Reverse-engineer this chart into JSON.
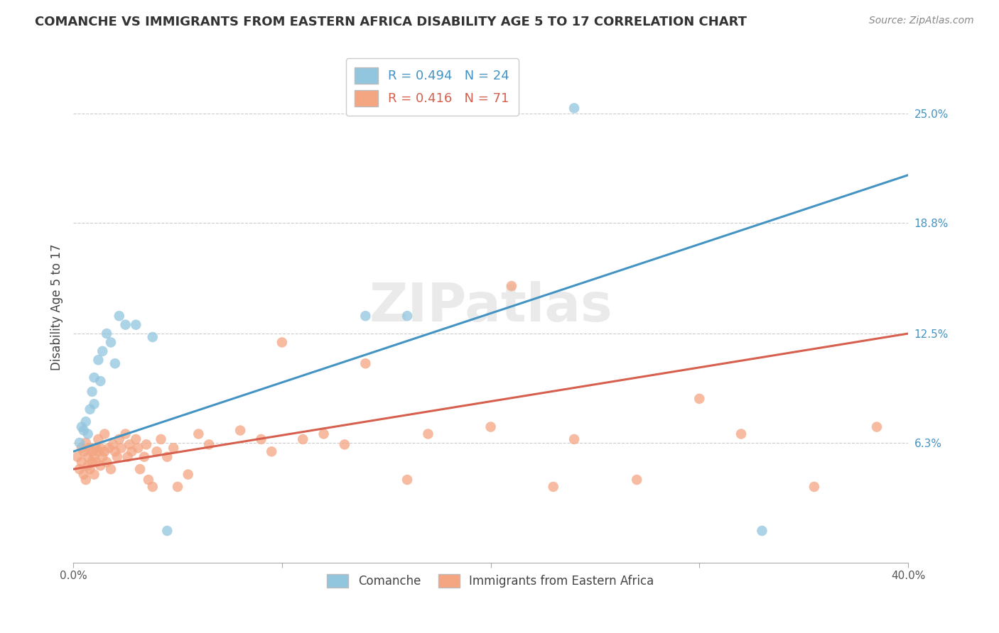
{
  "title": "COMANCHE VS IMMIGRANTS FROM EASTERN AFRICA DISABILITY AGE 5 TO 17 CORRELATION CHART",
  "source": "Source: ZipAtlas.com",
  "ylabel": "Disability Age 5 to 17",
  "x_min": 0.0,
  "x_max": 0.4,
  "y_min": -0.005,
  "y_max": 0.285,
  "right_y_ticks": [
    0.063,
    0.125,
    0.188,
    0.25
  ],
  "right_y_tick_labels": [
    "6.3%",
    "12.5%",
    "18.8%",
    "25.0%"
  ],
  "legend1_r": "0.494",
  "legend1_n": "24",
  "legend2_r": "0.416",
  "legend2_n": "71",
  "legend1_label": "Comanche",
  "legend2_label": "Immigrants from Eastern Africa",
  "blue_color": "#92c5de",
  "blue_line_color": "#4393c3",
  "pink_color": "#f4a582",
  "pink_line_color": "#d6604d",
  "watermark": "ZIPatlas",
  "blue_line_x0": 0.0,
  "blue_line_y0": 0.058,
  "blue_line_x1": 0.4,
  "blue_line_y1": 0.215,
  "pink_line_x0": 0.0,
  "pink_line_y0": 0.048,
  "pink_line_x1": 0.4,
  "pink_line_y1": 0.125,
  "comanche_x": [
    0.003,
    0.004,
    0.005,
    0.006,
    0.007,
    0.008,
    0.009,
    0.01,
    0.01,
    0.012,
    0.013,
    0.014,
    0.016,
    0.018,
    0.02,
    0.022,
    0.025,
    0.03,
    0.038,
    0.045,
    0.14,
    0.16,
    0.24,
    0.33
  ],
  "comanche_y": [
    0.063,
    0.072,
    0.07,
    0.075,
    0.068,
    0.082,
    0.092,
    0.085,
    0.1,
    0.11,
    0.098,
    0.115,
    0.125,
    0.12,
    0.108,
    0.135,
    0.13,
    0.13,
    0.123,
    0.013,
    0.135,
    0.135,
    0.253,
    0.013
  ],
  "eastern_africa_x": [
    0.002,
    0.003,
    0.004,
    0.004,
    0.005,
    0.005,
    0.006,
    0.006,
    0.007,
    0.007,
    0.008,
    0.008,
    0.009,
    0.009,
    0.01,
    0.01,
    0.011,
    0.011,
    0.012,
    0.012,
    0.013,
    0.013,
    0.014,
    0.015,
    0.015,
    0.016,
    0.017,
    0.018,
    0.019,
    0.02,
    0.021,
    0.022,
    0.023,
    0.025,
    0.026,
    0.027,
    0.028,
    0.03,
    0.031,
    0.032,
    0.034,
    0.035,
    0.036,
    0.038,
    0.04,
    0.042,
    0.045,
    0.048,
    0.05,
    0.055,
    0.06,
    0.065,
    0.08,
    0.09,
    0.095,
    0.1,
    0.11,
    0.12,
    0.13,
    0.14,
    0.16,
    0.17,
    0.2,
    0.21,
    0.23,
    0.24,
    0.27,
    0.3,
    0.32,
    0.355,
    0.385
  ],
  "eastern_africa_y": [
    0.055,
    0.048,
    0.052,
    0.06,
    0.045,
    0.058,
    0.042,
    0.063,
    0.05,
    0.055,
    0.048,
    0.06,
    0.052,
    0.058,
    0.055,
    0.045,
    0.06,
    0.052,
    0.058,
    0.065,
    0.06,
    0.05,
    0.055,
    0.068,
    0.058,
    0.052,
    0.06,
    0.048,
    0.062,
    0.058,
    0.055,
    0.065,
    0.06,
    0.068,
    0.055,
    0.062,
    0.058,
    0.065,
    0.06,
    0.048,
    0.055,
    0.062,
    0.042,
    0.038,
    0.058,
    0.065,
    0.055,
    0.06,
    0.038,
    0.045,
    0.068,
    0.062,
    0.07,
    0.065,
    0.058,
    0.12,
    0.065,
    0.068,
    0.062,
    0.108,
    0.042,
    0.068,
    0.072,
    0.152,
    0.038,
    0.065,
    0.042,
    0.088,
    0.068,
    0.038,
    0.072
  ]
}
